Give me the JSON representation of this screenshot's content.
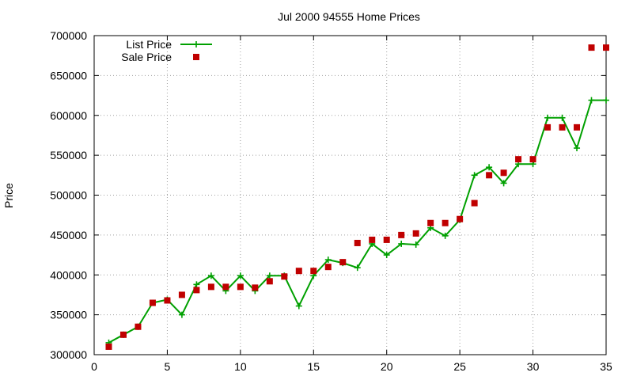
{
  "chart_data": {
    "type": "line",
    "title": "Jul 2000 94555 Home Prices",
    "xlabel": "",
    "ylabel": "Price",
    "xlim": [
      0,
      35
    ],
    "ylim": [
      300000,
      700000
    ],
    "xticks": [
      0,
      5,
      10,
      15,
      20,
      25,
      30,
      35
    ],
    "yticks": [
      300000,
      350000,
      400000,
      450000,
      500000,
      550000,
      600000,
      650000,
      700000
    ],
    "grid": true,
    "legend_position": "top-left",
    "series": [
      {
        "name": "List Price",
        "style": "line-with-plus-markers",
        "color": "#00a000",
        "x": [
          1,
          2,
          3,
          4,
          5,
          6,
          7,
          8,
          9,
          10,
          11,
          12,
          13,
          14,
          15,
          16,
          17,
          18,
          19,
          20,
          21,
          22,
          23,
          24,
          25,
          26,
          27,
          28,
          29,
          30,
          31,
          32,
          33,
          34,
          35
        ],
        "y": [
          315000,
          325000,
          335000,
          365000,
          369000,
          350000,
          388000,
          399000,
          380000,
          399000,
          380000,
          399000,
          399000,
          361000,
          399000,
          419000,
          415000,
          409000,
          439000,
          425000,
          439000,
          438000,
          459000,
          449000,
          469000,
          525000,
          535000,
          515000,
          539000,
          539000,
          597000,
          597000,
          559000,
          619000,
          619000
        ]
      },
      {
        "name": "Sale Price",
        "style": "square-markers",
        "color": "#c00000",
        "x": [
          1,
          2,
          3,
          4,
          5,
          6,
          7,
          8,
          9,
          10,
          11,
          12,
          13,
          14,
          15,
          16,
          17,
          18,
          19,
          20,
          21,
          22,
          23,
          24,
          25,
          26,
          27,
          28,
          29,
          30,
          31,
          32,
          33,
          34,
          35
        ],
        "y": [
          310000,
          325000,
          335000,
          365000,
          368000,
          375000,
          381000,
          385000,
          385000,
          385000,
          384000,
          392000,
          398000,
          405000,
          405000,
          410000,
          416000,
          440000,
          444000,
          444000,
          450000,
          452000,
          465000,
          465000,
          470000,
          490000,
          525000,
          528000,
          545000,
          545000,
          585000,
          585000,
          585000,
          685000,
          685000
        ]
      }
    ]
  }
}
